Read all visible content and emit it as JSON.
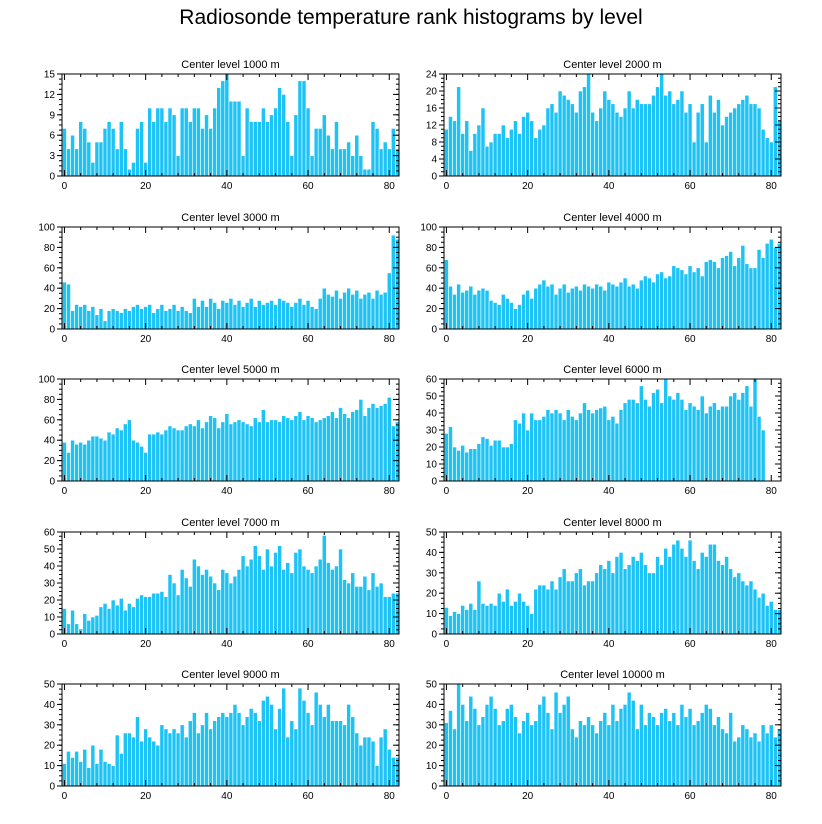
{
  "title": "Radiosonde temperature rank histograms by level",
  "colors": {
    "bar": "#1ec3f5",
    "bar_edge": "#ffffff",
    "axis": "#000000"
  },
  "chart_data": [
    {
      "type": "bar",
      "title": "Center level 1000 m",
      "ylim": [
        0,
        15
      ],
      "yticks": [
        0,
        3,
        6,
        9,
        12,
        15
      ],
      "xticks": [
        0,
        20,
        40,
        60,
        80
      ],
      "xlim": [
        -0.6,
        82.4
      ],
      "values": [
        7,
        4,
        6,
        4,
        8,
        7,
        5,
        2,
        5,
        5,
        7,
        8,
        7,
        4,
        8,
        4,
        1,
        2,
        7,
        8,
        2,
        10,
        8,
        10,
        10,
        8,
        10,
        9,
        3,
        10,
        10,
        8,
        10,
        10,
        7,
        9,
        7,
        10,
        13,
        14,
        15,
        11,
        11,
        11,
        3,
        10,
        8,
        8,
        8,
        10,
        8,
        9,
        10,
        13,
        12,
        8,
        3,
        9,
        14,
        14,
        10,
        3,
        7,
        7,
        9,
        6,
        4,
        8,
        4,
        4,
        5,
        3,
        6,
        3,
        1,
        1,
        8,
        7,
        4,
        5,
        4,
        7,
        4
      ]
    },
    {
      "type": "bar",
      "title": "Center level 2000 m",
      "ylim": [
        0,
        24
      ],
      "yticks": [
        0,
        4,
        8,
        12,
        16,
        20,
        24
      ],
      "xticks": [
        0,
        20,
        40,
        60,
        80
      ],
      "xlim": [
        -0.6,
        82.4
      ],
      "values": [
        11,
        14,
        13,
        21,
        10,
        13,
        6,
        10,
        12,
        16,
        7,
        8,
        10,
        10,
        12,
        9,
        11,
        13,
        10,
        14,
        15,
        13,
        9,
        11,
        12,
        16,
        17,
        15,
        20,
        19,
        18,
        17,
        15,
        20,
        21,
        24,
        15,
        13,
        16,
        20,
        18,
        17,
        15,
        14,
        16,
        20,
        16,
        18,
        17,
        17,
        17,
        19,
        21,
        24,
        19,
        20,
        17,
        18,
        20,
        15,
        17,
        8,
        15,
        17,
        8,
        19,
        15,
        18,
        12,
        14,
        15,
        16,
        17,
        18,
        19,
        17,
        17,
        16,
        11,
        9,
        8,
        21,
        13
      ]
    },
    {
      "type": "bar",
      "title": "Center level 3000 m",
      "ylim": [
        0,
        100
      ],
      "yticks": [
        0,
        20,
        40,
        60,
        80,
        100
      ],
      "xticks": [
        0,
        20,
        40,
        60,
        80
      ],
      "xlim": [
        -0.6,
        82.4
      ],
      "values": [
        46,
        44,
        18,
        24,
        22,
        24,
        18,
        22,
        14,
        20,
        8,
        18,
        20,
        18,
        16,
        20,
        18,
        22,
        24,
        20,
        22,
        24,
        16,
        20,
        24,
        18,
        20,
        24,
        18,
        22,
        18,
        16,
        30,
        22,
        28,
        22,
        30,
        26,
        20,
        28,
        26,
        30,
        24,
        28,
        22,
        26,
        30,
        22,
        28,
        24,
        26,
        28,
        24,
        30,
        28,
        26,
        22,
        26,
        30,
        24,
        28,
        22,
        20,
        30,
        40,
        34,
        32,
        38,
        30,
        36,
        40,
        34,
        38,
        30,
        34,
        36,
        30,
        38,
        34,
        36,
        55,
        92,
        88
      ]
    },
    {
      "type": "bar",
      "title": "Center level 4000 m",
      "ylim": [
        0,
        100
      ],
      "yticks": [
        0,
        20,
        40,
        60,
        80,
        100
      ],
      "xticks": [
        0,
        20,
        40,
        60,
        80
      ],
      "xlim": [
        -0.6,
        82.4
      ],
      "values": [
        68,
        42,
        34,
        44,
        36,
        38,
        42,
        34,
        38,
        40,
        38,
        28,
        26,
        24,
        34,
        30,
        26,
        20,
        24,
        34,
        38,
        30,
        40,
        44,
        48,
        42,
        44,
        34,
        40,
        44,
        36,
        40,
        42,
        38,
        44,
        42,
        40,
        44,
        42,
        38,
        46,
        44,
        42,
        46,
        50,
        42,
        44,
        40,
        48,
        52,
        50,
        46,
        54,
        56,
        50,
        52,
        62,
        60,
        58,
        54,
        62,
        56,
        60,
        52,
        66,
        68,
        66,
        60,
        70,
        72,
        76,
        62,
        70,
        82,
        64,
        60,
        60,
        78,
        70,
        84,
        88,
        80,
        84
      ]
    },
    {
      "type": "bar",
      "title": "Center level 5000 m",
      "ylim": [
        0,
        100
      ],
      "yticks": [
        0,
        20,
        40,
        60,
        80,
        100
      ],
      "xticks": [
        0,
        20,
        40,
        60,
        80
      ],
      "xlim": [
        -0.6,
        82.4
      ],
      "values": [
        38,
        28,
        40,
        36,
        38,
        36,
        40,
        44,
        44,
        42,
        40,
        48,
        46,
        52,
        50,
        56,
        60,
        40,
        38,
        34,
        28,
        46,
        46,
        48,
        46,
        50,
        54,
        52,
        50,
        50,
        54,
        56,
        54,
        60,
        52,
        58,
        64,
        62,
        52,
        58,
        66,
        56,
        58,
        60,
        58,
        56,
        54,
        62,
        58,
        70,
        58,
        60,
        60,
        58,
        64,
        62,
        60,
        64,
        68,
        60,
        64,
        62,
        58,
        60,
        62,
        64,
        68,
        62,
        72,
        66,
        62,
        68,
        70,
        80,
        64,
        72,
        76,
        72,
        74,
        76,
        82,
        54,
        58
      ]
    },
    {
      "type": "bar",
      "title": "Center level 6000 m",
      "ylim": [
        0,
        60
      ],
      "yticks": [
        0,
        10,
        20,
        30,
        40,
        50,
        60
      ],
      "xticks": [
        0,
        20,
        40,
        60,
        80
      ],
      "xlim": [
        -0.6,
        82.4
      ],
      "values": [
        28,
        32,
        20,
        18,
        21,
        17,
        19,
        19,
        22,
        26,
        25,
        21,
        24,
        24,
        20,
        20,
        22,
        36,
        34,
        40,
        30,
        40,
        36,
        36,
        38,
        42,
        40,
        42,
        40,
        36,
        42,
        38,
        36,
        40,
        46,
        42,
        40,
        42,
        43,
        44,
        36,
        38,
        34,
        42,
        46,
        48,
        48,
        46,
        56,
        48,
        44,
        52,
        54,
        46,
        60,
        50,
        48,
        52,
        48,
        42,
        46,
        44,
        42,
        50,
        40,
        44,
        46,
        42,
        44,
        44,
        50,
        52,
        48,
        52,
        56,
        44,
        60,
        38,
        30
      ]
    },
    {
      "type": "bar",
      "title": "Center level 7000 m",
      "ylim": [
        0,
        60
      ],
      "yticks": [
        0,
        10,
        20,
        30,
        40,
        50,
        60
      ],
      "xticks": [
        0,
        20,
        40,
        60,
        80
      ],
      "xlim": [
        -0.6,
        82.4
      ],
      "values": [
        15,
        6,
        14,
        6,
        3,
        12,
        8,
        10,
        11,
        16,
        18,
        15,
        20,
        17,
        21,
        14,
        18,
        16,
        21,
        23,
        22,
        22,
        24,
        24,
        25,
        22,
        35,
        30,
        23,
        38,
        33,
        28,
        44,
        40,
        35,
        38,
        34,
        30,
        26,
        38,
        36,
        30,
        34,
        38,
        46,
        40,
        44,
        52,
        46,
        38,
        50,
        40,
        48,
        52,
        38,
        42,
        36,
        48,
        50,
        40,
        38,
        36,
        40,
        44,
        58,
        42,
        38,
        40,
        50,
        32,
        30,
        36,
        28,
        28,
        34,
        26,
        36,
        28,
        30,
        22,
        22,
        24,
        24
      ]
    },
    {
      "type": "bar",
      "title": "Center level 8000 m",
      "ylim": [
        0,
        50
      ],
      "yticks": [
        0,
        10,
        20,
        30,
        40,
        50
      ],
      "xticks": [
        0,
        20,
        40,
        60,
        80
      ],
      "xlim": [
        -0.6,
        82.4
      ],
      "values": [
        13,
        9,
        11,
        10,
        14,
        12,
        15,
        12,
        26,
        15,
        14,
        15,
        14,
        20,
        16,
        22,
        14,
        16,
        20,
        16,
        14,
        10,
        22,
        24,
        24,
        22,
        26,
        22,
        28,
        32,
        26,
        26,
        30,
        32,
        24,
        26,
        26,
        30,
        34,
        32,
        36,
        30,
        38,
        40,
        32,
        34,
        38,
        36,
        40,
        34,
        30,
        30,
        38,
        34,
        42,
        38,
        44,
        46,
        42,
        38,
        46,
        36,
        32,
        40,
        38,
        44,
        44,
        36,
        34,
        38,
        32,
        28,
        30,
        26,
        24,
        26,
        22,
        18,
        20,
        14,
        16,
        12,
        12
      ]
    },
    {
      "type": "bar",
      "title": "Center level 9000 m",
      "ylim": [
        0,
        50
      ],
      "yticks": [
        0,
        10,
        20,
        30,
        40,
        50
      ],
      "xticks": [
        0,
        20,
        40,
        60,
        80
      ],
      "xlim": [
        -0.6,
        82.4
      ],
      "values": [
        11,
        17,
        14,
        17,
        12,
        18,
        9,
        20,
        11,
        18,
        12,
        11,
        10,
        25,
        16,
        26,
        26,
        24,
        34,
        22,
        28,
        24,
        22,
        20,
        30,
        28,
        26,
        28,
        26,
        30,
        24,
        32,
        36,
        26,
        30,
        36,
        28,
        32,
        34,
        36,
        34,
        36,
        40,
        36,
        30,
        34,
        38,
        36,
        32,
        42,
        44,
        40,
        28,
        38,
        48,
        24,
        32,
        28,
        48,
        42,
        36,
        30,
        46,
        40,
        34,
        40,
        32,
        32,
        32,
        30,
        40,
        34,
        26,
        20,
        24,
        24,
        22,
        10,
        24,
        28,
        18,
        14,
        14
      ]
    },
    {
      "type": "bar",
      "title": "Center level 10000 m",
      "ylim": [
        0,
        50
      ],
      "yticks": [
        0,
        10,
        20,
        30,
        40,
        50
      ],
      "xticks": [
        0,
        20,
        40,
        60,
        80
      ],
      "xlim": [
        -0.6,
        82.4
      ],
      "values": [
        31,
        37,
        28,
        50,
        40,
        32,
        44,
        38,
        30,
        34,
        40,
        44,
        38,
        30,
        32,
        38,
        40,
        34,
        26,
        32,
        36,
        30,
        32,
        40,
        44,
        36,
        28,
        46,
        36,
        40,
        44,
        28,
        24,
        32,
        30,
        34,
        30,
        26,
        32,
        36,
        30,
        40,
        32,
        38,
        40,
        46,
        42,
        28,
        40,
        30,
        36,
        34,
        30,
        36,
        38,
        32,
        36,
        30,
        40,
        34,
        38,
        30,
        32,
        36,
        40,
        38,
        30,
        34,
        28,
        26,
        36,
        22,
        24,
        30,
        28,
        24,
        26,
        22,
        30,
        26,
        30,
        24,
        28
      ]
    }
  ]
}
